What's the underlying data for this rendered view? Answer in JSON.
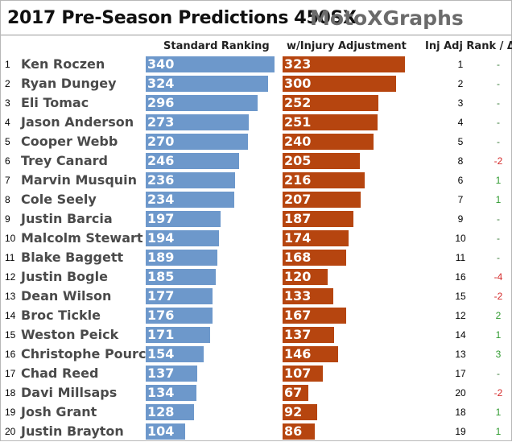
{
  "title": "2017 Pre-Season Predictions 450SX",
  "separator": "-",
  "brand": "MotoXGraphs",
  "colors": {
    "standard": "#6d98cb",
    "injury": "#b6450f",
    "up": "#2f9a2f",
    "down": "#d42a2a",
    "flat": "#3a7a3a"
  },
  "chart_data": {
    "type": "bar",
    "orientation": "horizontal",
    "columns": [
      "Standard Ranking",
      "w/Injury Adjustment",
      "Inj Adj Rank / Δ"
    ],
    "xlim": [
      0,
      340
    ],
    "rows": [
      {
        "rank": "1",
        "name": "Ken Roczen",
        "standard": 340,
        "injury": 323,
        "adj_rank": "1",
        "delta": "-"
      },
      {
        "rank": "2",
        "name": "Ryan Dungey",
        "standard": 324,
        "injury": 300,
        "adj_rank": "2",
        "delta": "-"
      },
      {
        "rank": "3",
        "name": "Eli Tomac",
        "standard": 296,
        "injury": 252,
        "adj_rank": "3",
        "delta": "-"
      },
      {
        "rank": "4",
        "name": "Jason Anderson",
        "standard": 273,
        "injury": 251,
        "adj_rank": "4",
        "delta": "-"
      },
      {
        "rank": "5",
        "name": "Cooper Webb",
        "standard": 270,
        "injury": 240,
        "adj_rank": "5",
        "delta": "-"
      },
      {
        "rank": "6",
        "name": "Trey Canard",
        "standard": 246,
        "injury": 205,
        "adj_rank": "8",
        "delta": "-2"
      },
      {
        "rank": "7",
        "name": "Marvin Musquin",
        "standard": 236,
        "injury": 216,
        "adj_rank": "6",
        "delta": "1"
      },
      {
        "rank": "8",
        "name": "Cole Seely",
        "standard": 234,
        "injury": 207,
        "adj_rank": "7",
        "delta": "1"
      },
      {
        "rank": "9",
        "name": "Justin Barcia",
        "standard": 197,
        "injury": 187,
        "adj_rank": "9",
        "delta": "-"
      },
      {
        "rank": "10",
        "name": "Malcolm Stewart",
        "standard": 194,
        "injury": 174,
        "adj_rank": "10",
        "delta": "-"
      },
      {
        "rank": "11",
        "name": "Blake Baggett",
        "standard": 189,
        "injury": 168,
        "adj_rank": "11",
        "delta": "-"
      },
      {
        "rank": "12",
        "name": "Justin Bogle",
        "standard": 185,
        "injury": 120,
        "adj_rank": "16",
        "delta": "-4"
      },
      {
        "rank": "13",
        "name": "Dean Wilson",
        "standard": 177,
        "injury": 133,
        "adj_rank": "15",
        "delta": "-2"
      },
      {
        "rank": "14",
        "name": "Broc Tickle",
        "standard": 176,
        "injury": 167,
        "adj_rank": "12",
        "delta": "2"
      },
      {
        "rank": "15",
        "name": "Weston Peick",
        "standard": 171,
        "injury": 137,
        "adj_rank": "14",
        "delta": "1"
      },
      {
        "rank": "16",
        "name": "Christophe Pourcel",
        "standard": 154,
        "injury": 146,
        "adj_rank": "13",
        "delta": "3"
      },
      {
        "rank": "17",
        "name": "Chad Reed",
        "standard": 137,
        "injury": 107,
        "adj_rank": "17",
        "delta": "-"
      },
      {
        "rank": "18",
        "name": "Davi Millsaps",
        "standard": 134,
        "injury": 67,
        "adj_rank": "20",
        "delta": "-2"
      },
      {
        "rank": "19",
        "name": "Josh Grant",
        "standard": 128,
        "injury": 92,
        "adj_rank": "18",
        "delta": "1"
      },
      {
        "rank": "20",
        "name": "Justin Brayton",
        "standard": 104,
        "injury": 86,
        "adj_rank": "19",
        "delta": "1"
      }
    ]
  }
}
